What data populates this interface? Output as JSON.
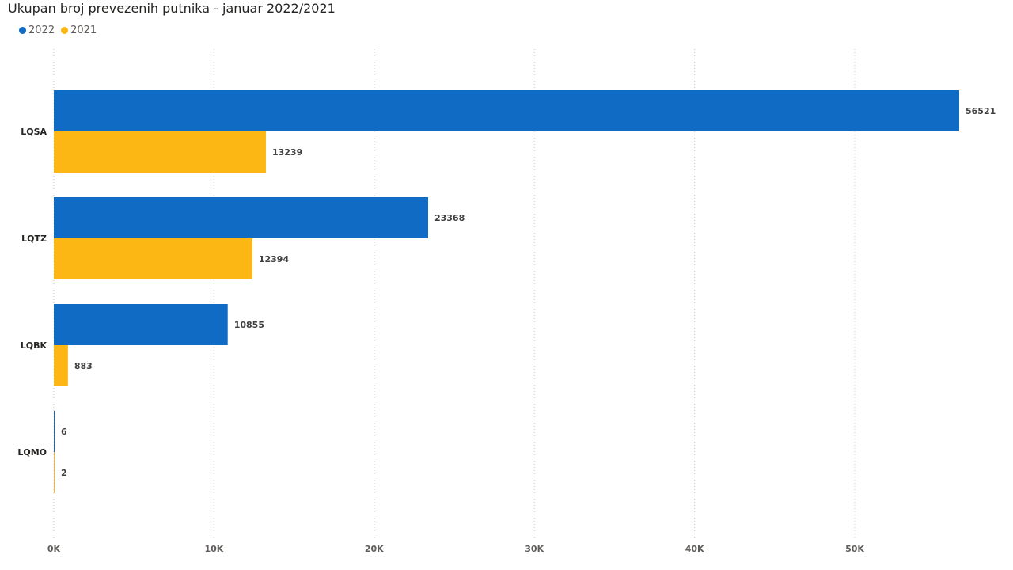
{
  "chart_data": {
    "type": "bar",
    "orientation": "horizontal",
    "title": "Ukupan broj prevezenih putnika - januar 2022/2021",
    "categories": [
      "LQSA",
      "LQTZ",
      "LQBK",
      "LQMO"
    ],
    "series": [
      {
        "name": "2022",
        "color": "#0F6BC4",
        "values": [
          56521,
          23368,
          10855,
          6
        ]
      },
      {
        "name": "2021",
        "color": "#FDB714",
        "values": [
          13239,
          12394,
          883,
          2
        ]
      }
    ],
    "xlim": [
      0,
      58000
    ],
    "xticks": [
      0,
      10000,
      20000,
      30000,
      40000,
      50000
    ],
    "xtick_labels": [
      "0K",
      "10K",
      "20K",
      "30K",
      "40K",
      "50K"
    ],
    "grid": "vertical dotted",
    "legend": "top-left"
  }
}
